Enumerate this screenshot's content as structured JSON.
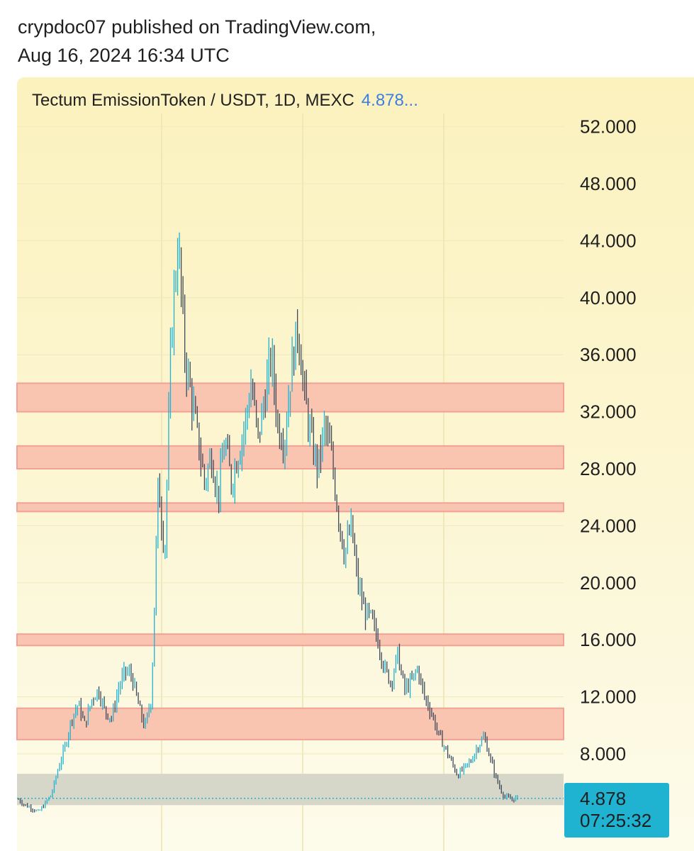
{
  "byline": {
    "line1": "crypdoc07 published on TradingView.com,",
    "line2": "Aug 16, 2024 16:34 UTC"
  },
  "header": {
    "title": "Tectum EmissionToken / USDT, 1D, MEXC",
    "price": "4.878..."
  },
  "price_label": {
    "price": "4.878",
    "countdown": "07:25:32"
  },
  "colors": {
    "zone_fill": "#f9c4b0",
    "zone_edge": "#f2a196",
    "base_zone": "#d7d7c9",
    "candle_up": "#1fb2d1",
    "candle_down": "#3d4a5c",
    "price_line": "#1fb2d1"
  },
  "chart_data": {
    "type": "candlestick",
    "title": "Tectum EmissionToken / USDT, 1D, MEXC",
    "last_price": 4.878,
    "y_ticks": [
      "52.000",
      "48.000",
      "44.000",
      "40.000",
      "36.000",
      "32.000",
      "28.000",
      "24.000",
      "20.000",
      "16.000",
      "12.000",
      "8.000"
    ],
    "ylim": [
      2.5,
      54
    ],
    "grid": true,
    "zones": [
      {
        "low": 32.0,
        "high": 34.0,
        "color": "salmon"
      },
      {
        "low": 28.0,
        "high": 29.6,
        "color": "salmon"
      },
      {
        "low": 25.0,
        "high": 25.6,
        "color": "salmon"
      },
      {
        "low": 15.6,
        "high": 16.4,
        "color": "salmon"
      },
      {
        "low": 9.0,
        "high": 11.2,
        "color": "salmon"
      },
      {
        "low": 4.4,
        "high": 6.6,
        "color": "gray"
      }
    ],
    "series": [
      {
        "name": "",
        "approx_close_path": [
          4.8,
          4.4,
          4.2,
          3.9,
          4.5,
          5.2,
          7.0,
          8.5,
          10.5,
          11.5,
          10.0,
          11.8,
          12.5,
          11.0,
          10.5,
          12.5,
          13.8,
          13.5,
          11.5,
          9.8,
          12.0,
          27.0,
          22.0,
          38.0,
          44.0,
          36.0,
          33.0,
          30.0,
          27.0,
          29.0,
          26.0,
          30.0,
          27.0,
          29.0,
          31.0,
          34.0,
          30.0,
          33.0,
          36.0,
          31.0,
          30.0,
          35.0,
          38.0,
          33.0,
          30.0,
          28.0,
          31.0,
          29.0,
          25.0,
          22.0,
          24.0,
          20.0,
          18.0,
          17.5,
          16.0,
          14.0,
          13.0,
          15.0,
          12.5,
          13.0,
          14.0,
          12.0,
          11.0,
          9.5,
          8.5,
          7.5,
          6.5,
          7.0,
          7.5,
          8.5,
          9.2,
          7.5,
          6.0,
          5.0,
          4.8,
          4.9
        ]
      }
    ],
    "date_label": "Aug 16, 2024 16:34 UTC"
  }
}
